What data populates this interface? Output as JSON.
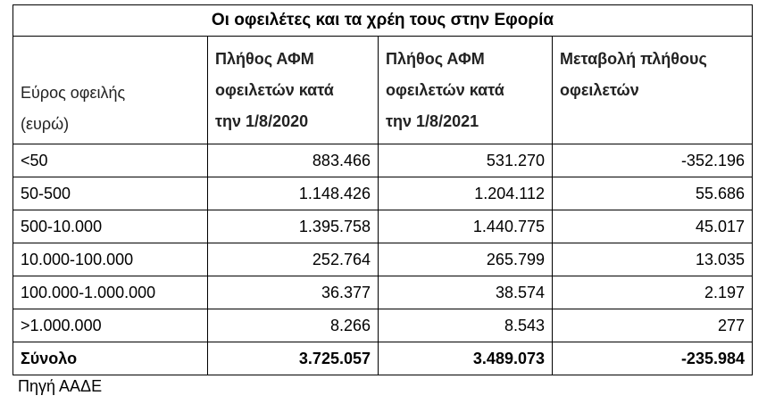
{
  "table": {
    "title": "Οι οφειλέτες και τα χρέη τους στην Εφορία",
    "header": [
      [
        "Εύρος οφειλής",
        "(ευρώ)"
      ],
      [
        "Πλήθος ΑΦΜ",
        "οφειλετών κατά",
        "την 1/8/2020"
      ],
      [
        "Πλήθος ΑΦΜ",
        "οφειλετών κατά",
        "την 1/8/2021"
      ],
      [
        "Μεταβολή πλήθους",
        "οφειλετών"
      ]
    ],
    "rows": [
      [
        "<50",
        "883.466",
        "531.270",
        "-352.196"
      ],
      [
        "50-500",
        "1.148.426",
        "1.204.112",
        "55.686"
      ],
      [
        "500-10.000",
        "1.395.758",
        "1.440.775",
        "45.017"
      ],
      [
        "10.000-100.000",
        "252.764",
        "265.799",
        "13.035"
      ],
      [
        "100.000-1.000.000",
        "36.377",
        "38.574",
        "2.197"
      ],
      [
        ">1.000.000",
        "8.266",
        "8.543",
        "277"
      ]
    ],
    "total": [
      "Σύνολο",
      "3.725.057",
      "3.489.073",
      "-235.984"
    ]
  },
  "source": "Πηγή ΑΑΔΕ"
}
